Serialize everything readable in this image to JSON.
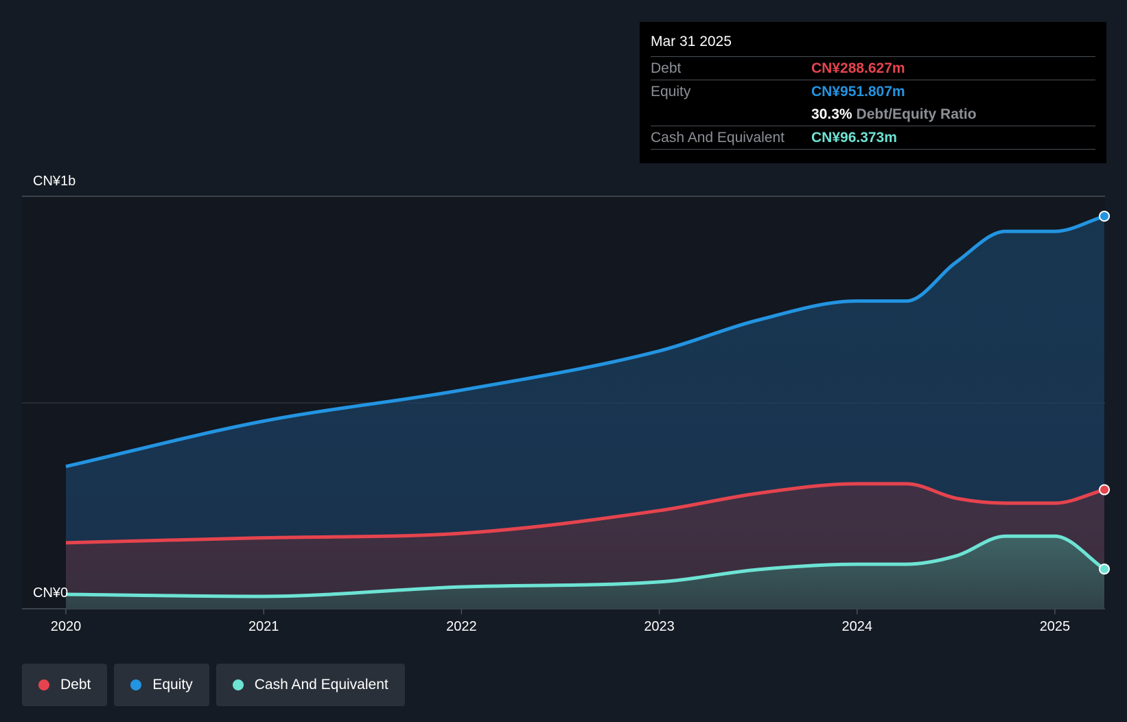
{
  "colors": {
    "debt": "#e5444e",
    "equity": "#2394e1",
    "cash": "#6de3d4",
    "background": "#151b24",
    "plot_background": "#121720"
  },
  "tooltip": {
    "date": "Mar 31 2025",
    "debt_label": "Debt",
    "debt_value": "CN¥288.627m",
    "equity_label": "Equity",
    "equity_value": "CN¥951.807m",
    "ratio_value": "30.3%",
    "ratio_label": "Debt/Equity Ratio",
    "cash_label": "Cash And Equivalent",
    "cash_value": "CN¥96.373m"
  },
  "legend": {
    "debt": "Debt",
    "equity": "Equity",
    "cash": "Cash And Equivalent"
  },
  "chart_data": {
    "type": "area",
    "title": "",
    "xlabel": "",
    "ylabel": "",
    "ylim": [
      0,
      1000
    ],
    "y_unit": "CN¥m",
    "y_tick_labels": [
      "CN¥0",
      "CN¥1b"
    ],
    "x_ticks": [
      "2020",
      "2021",
      "2022",
      "2023",
      "2024",
      "2025"
    ],
    "x": [
      2020.0,
      2021.0,
      2022.0,
      2023.0,
      2023.5,
      2024.0,
      2024.25,
      2024.5,
      2024.75,
      2025.0,
      2025.25
    ],
    "series": [
      {
        "name": "Equity",
        "key": "equity",
        "values": [
          345,
          455,
          530,
          625,
          700,
          746,
          746,
          840,
          915,
          915,
          951.807
        ]
      },
      {
        "name": "Debt",
        "key": "debt",
        "values": [
          160,
          172,
          183,
          238,
          280,
          303,
          303,
          268,
          256,
          256,
          288.627
        ]
      },
      {
        "name": "Cash And Equivalent",
        "key": "cash",
        "values": [
          35,
          30,
          53,
          65,
          95,
          108,
          108,
          128,
          176,
          176,
          96.373
        ]
      }
    ]
  }
}
